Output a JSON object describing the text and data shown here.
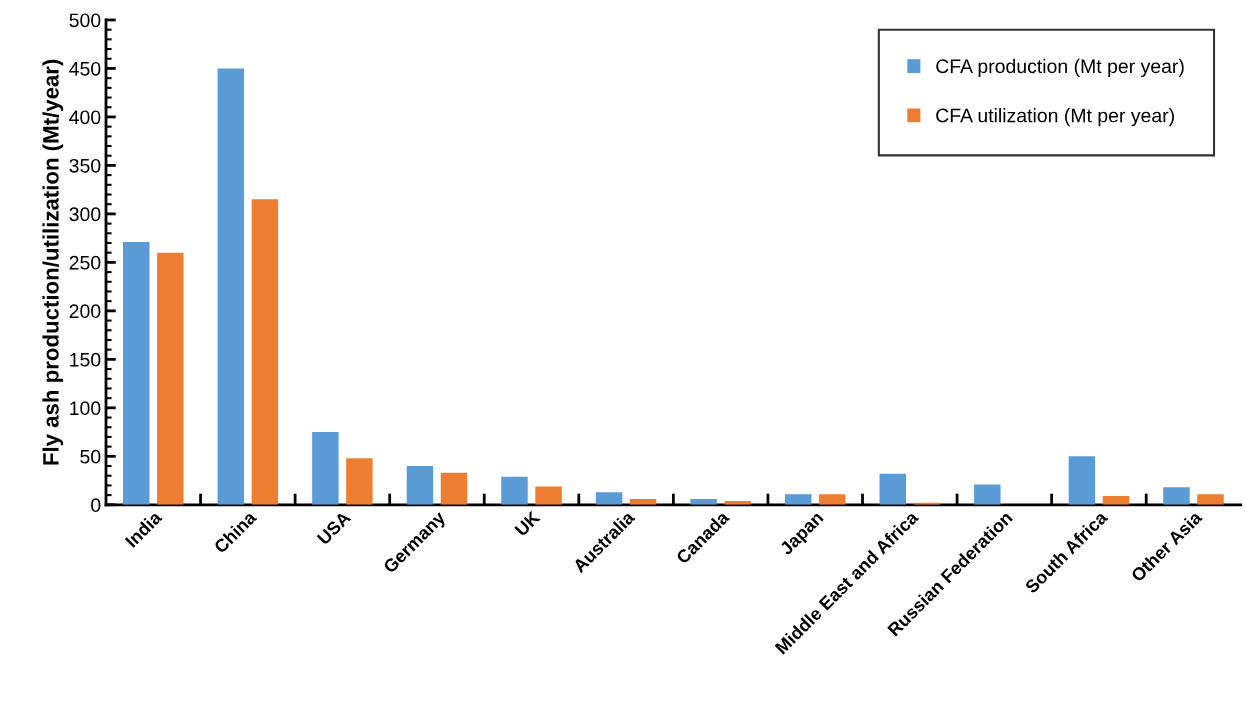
{
  "chart_data": {
    "type": "bar",
    "ylabel": "Fly ash production/utilization (Mt/year)",
    "categories": [
      "India",
      "China",
      "USA",
      "Germany",
      "UK",
      "Australia",
      "Canada",
      "Japan",
      "Middle East and Africa",
      "Russian Federation",
      "South Africa",
      "Other Asia"
    ],
    "series": [
      {
        "name": "CFA production (Mt per year)",
        "color": "#5b9bd5",
        "values": [
          271,
          450,
          75,
          40,
          29,
          13,
          6,
          11,
          32,
          21,
          50,
          18
        ]
      },
      {
        "name": "CFA utilization (Mt per year)",
        "color": "#ed7d31",
        "values": [
          260,
          315,
          48,
          33,
          19,
          6,
          4,
          11,
          2,
          0,
          9,
          11
        ]
      }
    ],
    "ylim": [
      0,
      500
    ],
    "yticks": [
      0,
      50,
      100,
      150,
      200,
      250,
      300,
      350,
      400,
      450,
      500
    ],
    "grid": false,
    "legend": "top right"
  }
}
